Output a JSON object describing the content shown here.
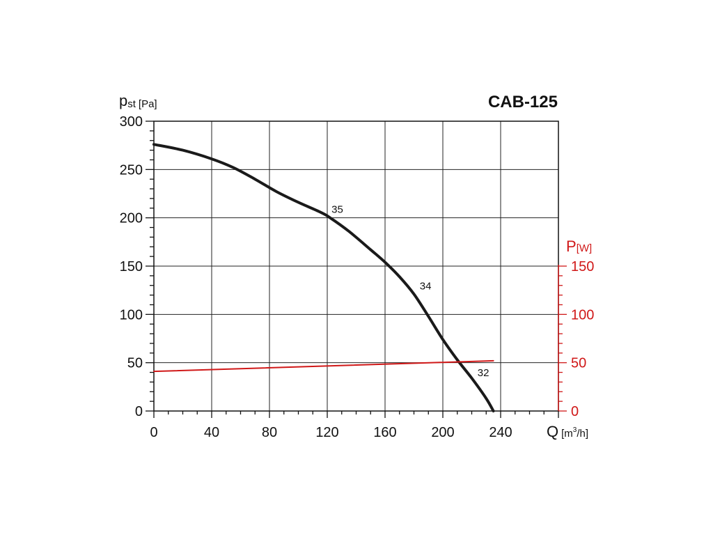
{
  "chart_data": {
    "type": "line",
    "title": "CAB-125",
    "y_axis": {
      "symbol": "p",
      "subscript": "st",
      "unit": "[Pa]",
      "ticks": [
        "0",
        "50",
        "100",
        "150",
        "200",
        "250",
        "300"
      ],
      "range": [
        0,
        300
      ]
    },
    "y2_axis": {
      "symbol": "P",
      "unit": "[W]",
      "ticks": [
        "0",
        "50",
        "100",
        "150"
      ],
      "range": [
        0,
        150
      ]
    },
    "x_axis": {
      "symbol": "Q",
      "unit_prefix": "[m",
      "unit_exp": "3",
      "unit_suffix": "/h]",
      "ticks": [
        "0",
        "40",
        "80",
        "120",
        "160",
        "200",
        "240"
      ],
      "range": [
        0,
        280
      ]
    },
    "grid": true,
    "series": [
      {
        "axis": "left",
        "color": "#1a1a1a",
        "x": [
          0,
          20,
          40,
          55,
          70,
          85,
          100,
          115,
          122,
          135,
          150,
          160,
          170,
          180,
          190,
          200,
          210,
          220,
          230,
          235
        ],
        "y": [
          276,
          270,
          261,
          252,
          240,
          227,
          216,
          206,
          200,
          186,
          167,
          154,
          139,
          121,
          98,
          74,
          53,
          34,
          13,
          0
        ]
      },
      {
        "axis": "right",
        "color": "#d01818",
        "x": [
          0,
          235
        ],
        "y": [
          41,
          52
        ]
      }
    ],
    "annotations": [
      {
        "text": "35",
        "x": 127,
        "y": 205
      },
      {
        "text": "34",
        "x": 188,
        "y": 126
      },
      {
        "text": "32",
        "x": 228,
        "y": 36
      }
    ]
  }
}
